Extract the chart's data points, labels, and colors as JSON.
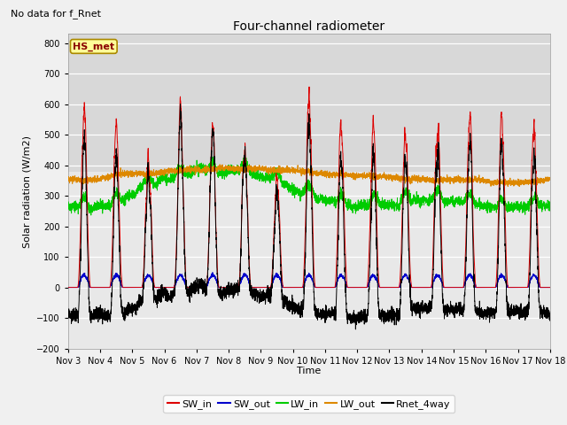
{
  "title": "Four-channel radiometer",
  "top_left_text": "No data for f_Rnet",
  "ylabel": "Solar radiation (W/m2)",
  "xlabel": "Time",
  "station_label": "HS_met",
  "ylim": [
    -200,
    830
  ],
  "yticks": [
    -200,
    -100,
    0,
    100,
    200,
    300,
    400,
    500,
    600,
    700,
    800
  ],
  "xtick_labels": [
    "Nov 3",
    "Nov 4",
    "Nov 5",
    "Nov 6",
    "Nov 7",
    "Nov 8",
    "Nov 9",
    "Nov 10",
    "Nov 11",
    "Nov 12",
    "Nov 13",
    "Nov 14",
    "Nov 15",
    "Nov 16",
    "Nov 17",
    "Nov 18"
  ],
  "colors": {
    "SW_in": "#dd0000",
    "SW_out": "#0000cc",
    "LW_in": "#00cc00",
    "LW_out": "#dd8800",
    "Rnet_4way": "#000000"
  },
  "fig_width": 6.4,
  "fig_height": 4.8,
  "dpi": 100,
  "background_color": "#f0f0f0",
  "plot_bg_color": "#e8e8e8",
  "upper_bg_color": "#d8d8d8"
}
